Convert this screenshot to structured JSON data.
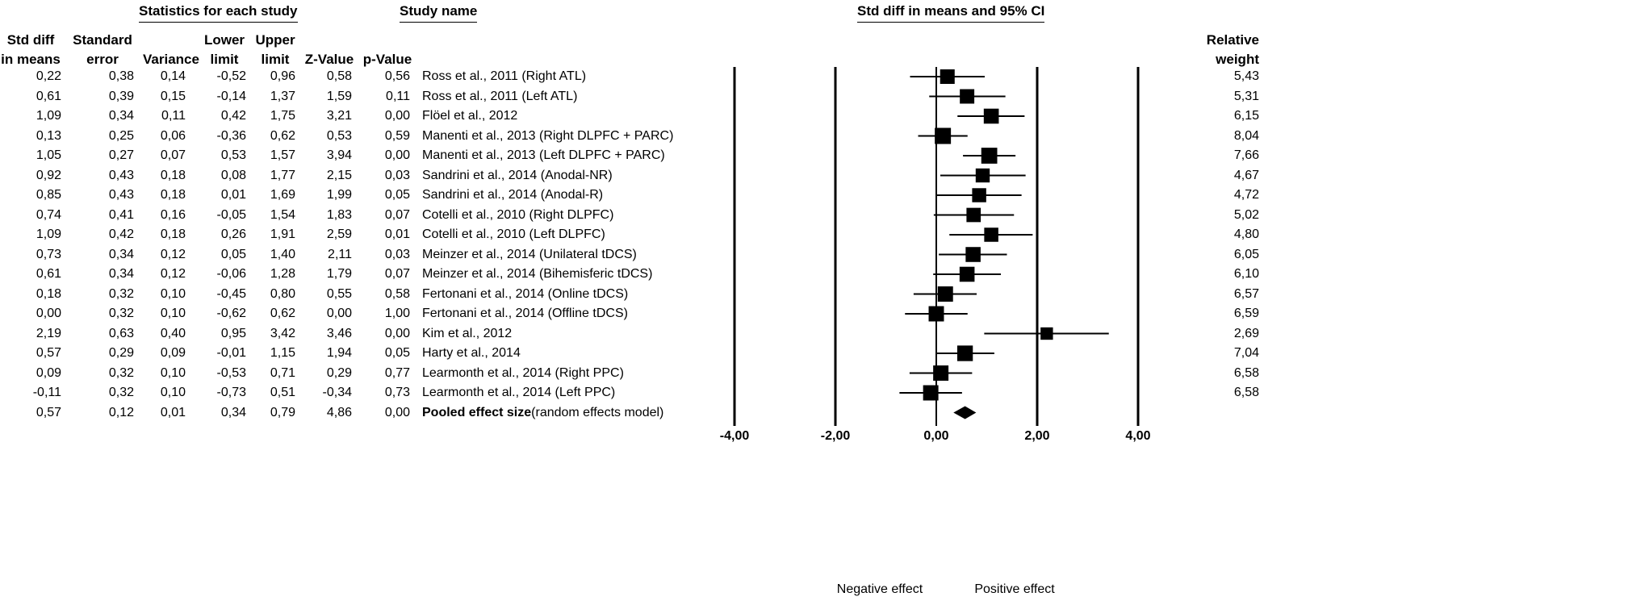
{
  "headers": {
    "stats_group": "Statistics for each study",
    "study_name": "Study name",
    "plot_title": "Std diff in means and 95% CI",
    "columns": {
      "std_diff": [
        "Std diff",
        "in means"
      ],
      "std_error": [
        "Standard",
        "error"
      ],
      "variance": [
        "Variance"
      ],
      "lower": [
        "Lower",
        "limit"
      ],
      "upper": [
        "Upper",
        "limit"
      ],
      "z": [
        "Z-Value"
      ],
      "p": [
        "p-Value"
      ]
    },
    "relative_weight": [
      "Relative",
      "weight"
    ]
  },
  "rows": [
    {
      "std_diff": "0,22",
      "se": "0,38",
      "var": "0,14",
      "lower": "-0,52",
      "upper": "0,96",
      "z": "0,58",
      "p": "0,56",
      "name": "Ross et al., 2011 (Right ATL)",
      "weight": "5,43"
    },
    {
      "std_diff": "0,61",
      "se": "0,39",
      "var": "0,15",
      "lower": "-0,14",
      "upper": "1,37",
      "z": "1,59",
      "p": "0,11",
      "name": "Ross et al., 2011 (Left ATL)",
      "weight": "5,31"
    },
    {
      "std_diff": "1,09",
      "se": "0,34",
      "var": "0,11",
      "lower": "0,42",
      "upper": "1,75",
      "z": "3,21",
      "p": "0,00",
      "name": "Flöel et al., 2012",
      "weight": "6,15"
    },
    {
      "std_diff": "0,13",
      "se": "0,25",
      "var": "0,06",
      "lower": "-0,36",
      "upper": "0,62",
      "z": "0,53",
      "p": "0,59",
      "name": "Manenti et al., 2013 (Right  DLPFC + PARC)",
      "weight": "8,04"
    },
    {
      "std_diff": "1,05",
      "se": "0,27",
      "var": "0,07",
      "lower": "0,53",
      "upper": "1,57",
      "z": "3,94",
      "p": "0,00",
      "name": "Manenti et al., 2013 (Left  DLPFC + PARC)",
      "weight": "7,66"
    },
    {
      "std_diff": "0,92",
      "se": "0,43",
      "var": "0,18",
      "lower": "0,08",
      "upper": "1,77",
      "z": "2,15",
      "p": "0,03",
      "name": "Sandrini et al., 2014 (Anodal-NR)",
      "weight": "4,67"
    },
    {
      "std_diff": "0,85",
      "se": "0,43",
      "var": "0,18",
      "lower": "0,01",
      "upper": "1,69",
      "z": "1,99",
      "p": "0,05",
      "name": "Sandrini et al., 2014 (Anodal-R)",
      "weight": "4,72"
    },
    {
      "std_diff": "0,74",
      "se": "0,41",
      "var": "0,16",
      "lower": "-0,05",
      "upper": "1,54",
      "z": "1,83",
      "p": "0,07",
      "name": "Cotelli et al., 2010 (Right DLPFC)",
      "weight": "5,02"
    },
    {
      "std_diff": "1,09",
      "se": "0,42",
      "var": "0,18",
      "lower": "0,26",
      "upper": "1,91",
      "z": "2,59",
      "p": "0,01",
      "name": "Cotelli et al., 2010 (Left DLPFC)",
      "weight": "4,80"
    },
    {
      "std_diff": "0,73",
      "se": "0,34",
      "var": "0,12",
      "lower": "0,05",
      "upper": "1,40",
      "z": "2,11",
      "p": "0,03",
      "name": "Meinzer et al., 2014 (Unilateral tDCS)",
      "weight": "6,05"
    },
    {
      "std_diff": "0,61",
      "se": "0,34",
      "var": "0,12",
      "lower": "-0,06",
      "upper": "1,28",
      "z": "1,79",
      "p": "0,07",
      "name": "Meinzer et al., 2014 (Bihemisferic tDCS)",
      "weight": "6,10"
    },
    {
      "std_diff": "0,18",
      "se": "0,32",
      "var": "0,10",
      "lower": "-0,45",
      "upper": "0,80",
      "z": "0,55",
      "p": "0,58",
      "name": "Fertonani et al., 2014 (Online tDCS)",
      "weight": "6,57"
    },
    {
      "std_diff": "0,00",
      "se": "0,32",
      "var": "0,10",
      "lower": "-0,62",
      "upper": "0,62",
      "z": "0,00",
      "p": "1,00",
      "name": "Fertonani et al., 2014 (Offline tDCS)",
      "weight": "6,59"
    },
    {
      "std_diff": "2,19",
      "se": "0,63",
      "var": "0,40",
      "lower": "0,95",
      "upper": "3,42",
      "z": "3,46",
      "p": "0,00",
      "name": "Kim et al., 2012",
      "weight": "2,69"
    },
    {
      "std_diff": "0,57",
      "se": "0,29",
      "var": "0,09",
      "lower": "-0,01",
      "upper": "1,15",
      "z": "1,94",
      "p": "0,05",
      "name": "Harty et al., 2014",
      "weight": "7,04"
    },
    {
      "std_diff": "0,09",
      "se": "0,32",
      "var": "0,10",
      "lower": "-0,53",
      "upper": "0,71",
      "z": "0,29",
      "p": "0,77",
      "name": "Learmonth et al., 2014 (Right PPC)",
      "weight": "6,58"
    },
    {
      "std_diff": "-0,11",
      "se": "0,32",
      "var": "0,10",
      "lower": "-0,73",
      "upper": "0,51",
      "z": "-0,34",
      "p": "0,73",
      "name": "Learmonth et al., 2014 (Left PPC)",
      "weight": "6,58"
    }
  ],
  "pooled": {
    "std_diff": "0,57",
    "se": "0,12",
    "var": "0,01",
    "lower": "0,34",
    "upper": "0,79",
    "z": "4,86",
    "p": "0,00",
    "name": "Pooled effect size",
    "name_sub": "(random effects model)"
  },
  "axis": {
    "ticks": [
      "-4,00",
      "-2,00",
      "0,00",
      "2,00",
      "4,00"
    ],
    "negative_label": "Negative effect",
    "positive_label": "Positive effect"
  },
  "chart_data": {
    "type": "forest",
    "title": "Std diff in means and 95% CI",
    "xlim": [
      -4,
      4
    ],
    "xticks": [
      -4,
      -2,
      0,
      2,
      4
    ],
    "estimates": [
      0.22,
      0.61,
      1.09,
      0.13,
      1.05,
      0.92,
      0.85,
      0.74,
      1.09,
      0.73,
      0.61,
      0.18,
      0.0,
      2.19,
      0.57,
      0.09,
      -0.11
    ],
    "lower": [
      -0.52,
      -0.14,
      0.42,
      -0.36,
      0.53,
      0.08,
      0.01,
      -0.05,
      0.26,
      0.05,
      -0.06,
      -0.45,
      -0.62,
      0.95,
      -0.01,
      -0.53,
      -0.73
    ],
    "upper": [
      0.96,
      1.37,
      1.75,
      0.62,
      1.57,
      1.77,
      1.69,
      1.54,
      1.91,
      1.4,
      1.28,
      0.8,
      0.62,
      3.42,
      1.15,
      0.71,
      0.51
    ],
    "weights": [
      5.43,
      5.31,
      6.15,
      8.04,
      7.66,
      4.67,
      4.72,
      5.02,
      4.8,
      6.05,
      6.1,
      6.57,
      6.59,
      2.69,
      7.04,
      6.58,
      6.58
    ],
    "pooled": {
      "estimate": 0.57,
      "lower": 0.34,
      "upper": 0.79
    }
  }
}
